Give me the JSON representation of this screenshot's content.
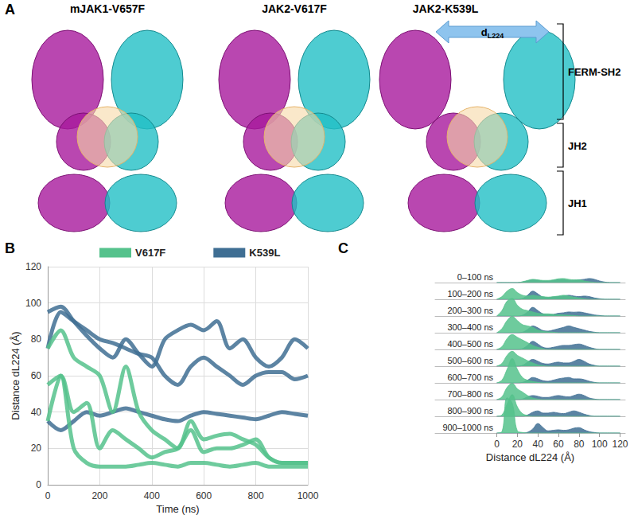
{
  "panel_labels": [
    "A",
    "B",
    "C"
  ],
  "structures": {
    "titles": [
      "mJAK1-V657F",
      "JAK2-V617F",
      "JAK2-K539L"
    ],
    "distance_label": "dL224",
    "domains": [
      "FERM-SH2",
      "JH2",
      "JH1"
    ]
  },
  "chart_data": [
    {
      "type": "line",
      "x_label": "Time (ns)",
      "y_label": "Distance dL224 (Å)",
      "xlim": [
        0,
        1000
      ],
      "xticks": [
        0,
        200,
        400,
        600,
        800,
        1000
      ],
      "ylim": [
        0,
        120
      ],
      "yticks": [
        0,
        20,
        40,
        60,
        80,
        100,
        120
      ],
      "grid": true,
      "legend": "top",
      "x": [
        0,
        50,
        100,
        150,
        200,
        250,
        300,
        350,
        400,
        450,
        500,
        550,
        600,
        650,
        700,
        750,
        800,
        850,
        900,
        950,
        1000
      ],
      "series": [
        {
          "name": "K539L",
          "color": "#3f6e93",
          "values": [
            95,
            98,
            90,
            82,
            75,
            70,
            80,
            72,
            65,
            80,
            85,
            88,
            85,
            90,
            75,
            80,
            70,
            65,
            70,
            80,
            75
          ]
        },
        {
          "name": "K539L",
          "color": "#3f6e93",
          "values": [
            75,
            95,
            90,
            85,
            80,
            78,
            75,
            72,
            70,
            60,
            55,
            65,
            70,
            65,
            60,
            55,
            60,
            62,
            62,
            58,
            60
          ]
        },
        {
          "name": "K539L",
          "color": "#3f6e93",
          "values": [
            35,
            30,
            35,
            40,
            38,
            40,
            42,
            40,
            38,
            36,
            35,
            38,
            40,
            39,
            38,
            37,
            36,
            38,
            40,
            39,
            38
          ]
        },
        {
          "name": "V617F",
          "color": "#55c28c",
          "values": [
            75,
            85,
            70,
            65,
            60,
            40,
            65,
            40,
            30,
            25,
            20,
            35,
            25,
            27,
            28,
            25,
            22,
            15,
            12,
            12,
            12
          ]
        },
        {
          "name": "V617F",
          "color": "#55c28c",
          "values": [
            55,
            60,
            40,
            45,
            20,
            30,
            25,
            20,
            15,
            18,
            20,
            30,
            18,
            20,
            20,
            22,
            25,
            15,
            12,
            12,
            12
          ]
        },
        {
          "name": "V617F",
          "color": "#55c28c",
          "values": [
            35,
            60,
            20,
            12,
            10,
            10,
            10,
            11,
            12,
            11,
            10,
            12,
            12,
            11,
            10,
            11,
            12,
            10,
            10,
            10,
            10
          ]
        }
      ]
    },
    {
      "type": "ridgeline",
      "x_label": "Distance dL224 (Å)",
      "xlim": [
        -60,
        125
      ],
      "xticks": [
        0,
        20,
        40,
        60,
        80,
        100,
        120
      ],
      "ylim": [
        0,
        1.5
      ],
      "tick_labels": "x",
      "categories": [
        "0–100 ns",
        "100–200 ns",
        "200–300 ns",
        "300–400 ns",
        "400–500 ns",
        "500–600 ns",
        "600–700 ns",
        "700–800 ns",
        "800–900 ns",
        "900–1000 ns"
      ],
      "x": [
        0,
        5,
        10,
        15,
        20,
        25,
        30,
        35,
        40,
        45,
        50,
        55,
        60,
        65,
        70,
        75,
        80,
        85,
        90,
        95,
        100,
        105,
        110,
        115,
        120
      ],
      "series": [
        {
          "name": "K539L",
          "color": "#3f6e93",
          "values": [
            [
              0,
              0,
              0,
              0,
              0,
              0.02,
              0.06,
              0.1,
              0.08,
              0.05,
              0.05,
              0.08,
              0.1,
              0.1,
              0.08,
              0.08,
              0.1,
              0.12,
              0.15,
              0.12,
              0.06,
              0.02,
              0,
              0,
              0
            ],
            [
              0,
              0,
              0,
              0,
              0,
              0.03,
              0.15,
              0.3,
              0.2,
              0.08,
              0.06,
              0.08,
              0.1,
              0.12,
              0.15,
              0.12,
              0.1,
              0.12,
              0.1,
              0.05,
              0.02,
              0,
              0,
              0,
              0
            ],
            [
              0,
              0,
              0,
              0,
              0,
              0.03,
              0.15,
              0.32,
              0.2,
              0.08,
              0.05,
              0.06,
              0.1,
              0.12,
              0.15,
              0.14,
              0.15,
              0.12,
              0.08,
              0.04,
              0.02,
              0,
              0,
              0,
              0
            ],
            [
              0,
              0,
              0,
              0,
              0,
              0.02,
              0.12,
              0.25,
              0.18,
              0.08,
              0.06,
              0.1,
              0.15,
              0.2,
              0.25,
              0.2,
              0.15,
              0.1,
              0.05,
              0.02,
              0,
              0,
              0,
              0,
              0
            ],
            [
              0,
              0,
              0,
              0,
              0,
              0.03,
              0.15,
              0.3,
              0.2,
              0.08,
              0.05,
              0.08,
              0.12,
              0.15,
              0.15,
              0.18,
              0.2,
              0.15,
              0.08,
              0.03,
              0,
              0,
              0,
              0,
              0
            ],
            [
              0,
              0,
              0,
              0,
              0,
              0.03,
              0.15,
              0.25,
              0.18,
              0.1,
              0.08,
              0.12,
              0.15,
              0.12,
              0.12,
              0.18,
              0.25,
              0.18,
              0.08,
              0.03,
              0,
              0,
              0,
              0,
              0
            ],
            [
              0,
              0,
              0,
              0,
              0,
              0.02,
              0.1,
              0.2,
              0.15,
              0.08,
              0.06,
              0.1,
              0.15,
              0.18,
              0.2,
              0.15,
              0.15,
              0.12,
              0.06,
              0.02,
              0,
              0,
              0,
              0,
              0
            ],
            [
              0,
              0,
              0,
              0,
              0,
              0.02,
              0.1,
              0.15,
              0.12,
              0.08,
              0.08,
              0.12,
              0.15,
              0.12,
              0.1,
              0.15,
              0.2,
              0.15,
              0.06,
              0.02,
              0,
              0,
              0,
              0,
              0
            ],
            [
              0,
              0,
              0,
              0,
              0,
              0,
              0.05,
              0.15,
              0.2,
              0.12,
              0.12,
              0.15,
              0.12,
              0.1,
              0.15,
              0.2,
              0.15,
              0.08,
              0.03,
              0,
              0,
              0,
              0,
              0,
              0
            ],
            [
              0,
              0,
              0,
              0,
              0,
              0,
              0.03,
              0.15,
              0.35,
              0.2,
              0.08,
              0.1,
              0.12,
              0.1,
              0.12,
              0.18,
              0.2,
              0.12,
              0.05,
              0.02,
              0,
              0,
              0,
              0,
              0
            ]
          ]
        },
        {
          "name": "V617F",
          "color": "#55c28c",
          "values": [
            [
              0,
              0,
              0,
              0,
              0,
              0.03,
              0.08,
              0.12,
              0.1,
              0.08,
              0.08,
              0.1,
              0.14,
              0.15,
              0.12,
              0.1,
              0.1,
              0.06,
              0.03,
              0.01,
              0,
              0,
              0,
              0,
              0
            ],
            [
              0,
              0.1,
              0.3,
              0.4,
              0.25,
              0.15,
              0.12,
              0.15,
              0.12,
              0.1,
              0.08,
              0.1,
              0.12,
              0.15,
              0.12,
              0.08,
              0.05,
              0.02,
              0,
              0,
              0,
              0,
              0,
              0,
              0
            ],
            [
              0,
              0.2,
              0.55,
              0.65,
              0.4,
              0.25,
              0.2,
              0.15,
              0.1,
              0.08,
              0.08,
              0.06,
              0.05,
              0.04,
              0.03,
              0.02,
              0,
              0,
              0,
              0,
              0,
              0,
              0,
              0,
              0
            ],
            [
              0,
              0.15,
              0.45,
              0.6,
              0.45,
              0.3,
              0.25,
              0.2,
              0.1,
              0.05,
              0.03,
              0.02,
              0,
              0,
              0,
              0,
              0,
              0,
              0,
              0,
              0,
              0,
              0,
              0,
              0
            ],
            [
              0,
              0.1,
              0.4,
              0.55,
              0.45,
              0.35,
              0.25,
              0.15,
              0.08,
              0.03,
              0,
              0,
              0,
              0,
              0,
              0,
              0,
              0,
              0,
              0,
              0,
              0,
              0,
              0,
              0
            ],
            [
              0,
              0.1,
              0.4,
              0.55,
              0.4,
              0.3,
              0.2,
              0.12,
              0.05,
              0.02,
              0,
              0,
              0,
              0,
              0,
              0,
              0,
              0,
              0,
              0,
              0,
              0,
              0,
              0,
              0
            ],
            [
              0,
              0.1,
              0.5,
              0.9,
              0.5,
              0.2,
              0.1,
              0.05,
              0.02,
              0,
              0,
              0,
              0,
              0,
              0,
              0,
              0,
              0,
              0,
              0,
              0,
              0,
              0,
              0,
              0
            ],
            [
              0,
              0.1,
              0.45,
              0.6,
              0.4,
              0.28,
              0.15,
              0.06,
              0.02,
              0,
              0,
              0,
              0,
              0,
              0,
              0,
              0,
              0,
              0,
              0,
              0,
              0,
              0,
              0,
              0
            ],
            [
              0,
              0.05,
              0.45,
              0.8,
              0.35,
              0.1,
              0.03,
              0,
              0,
              0,
              0,
              0,
              0,
              0,
              0,
              0,
              0,
              0,
              0,
              0,
              0,
              0,
              0,
              0,
              0
            ],
            [
              0,
              0.05,
              1.3,
              1.1,
              0.08,
              0.02,
              0,
              0,
              0,
              0,
              0,
              0,
              0,
              0,
              0,
              0,
              0,
              0,
              0,
              0,
              0,
              0,
              0,
              0,
              0
            ]
          ]
        }
      ]
    }
  ]
}
